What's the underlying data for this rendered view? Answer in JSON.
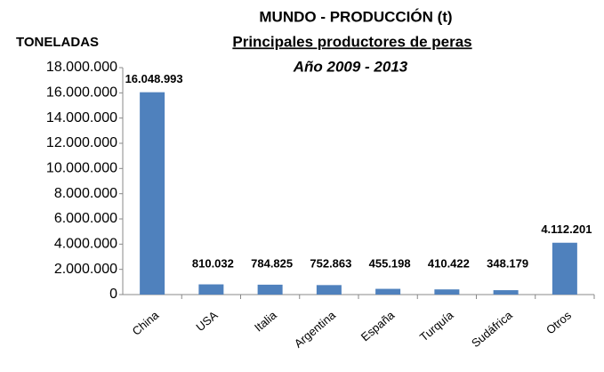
{
  "chart_data": {
    "type": "bar",
    "title": "MUNDO - PRODUCCIÓN  (t)",
    "subtitle": "Principales productores de peras",
    "annotation": "Año 2009 - 2013",
    "y_label": "TONELADAS",
    "categories": [
      "China",
      "USA",
      "Italia",
      "Argentina",
      "España",
      "Turquía",
      "Sudáfrica",
      "Otros"
    ],
    "values": [
      16048993,
      810032,
      784825,
      752863,
      455198,
      410422,
      348179,
      4112201
    ],
    "value_labels": [
      "16.048.993",
      "810.032",
      "784.825",
      "752.863",
      "455.198",
      "410.422",
      "348.179",
      "4.112.201"
    ],
    "color": "#4f81bd",
    "ylim": [
      0,
      18000000
    ],
    "yticks": [
      0,
      {
        "value": 2000000,
        "label": "2.000.000"
      },
      {
        "value": 4000000,
        "label": "4.000.000"
      },
      {
        "value": 6000000,
        "label": "6.000.000"
      },
      {
        "value": 8000000,
        "label": "8.000.000"
      },
      {
        "value": 10000000,
        "label": "10.000.000"
      },
      {
        "value": 12000000,
        "label": "12.000.000"
      },
      {
        "value": 14000000,
        "label": "14.000.000"
      },
      {
        "value": 16000000,
        "label": "16.000.000"
      },
      {
        "value": 18000000,
        "label": "18.000.000"
      }
    ],
    "grid": false
  }
}
